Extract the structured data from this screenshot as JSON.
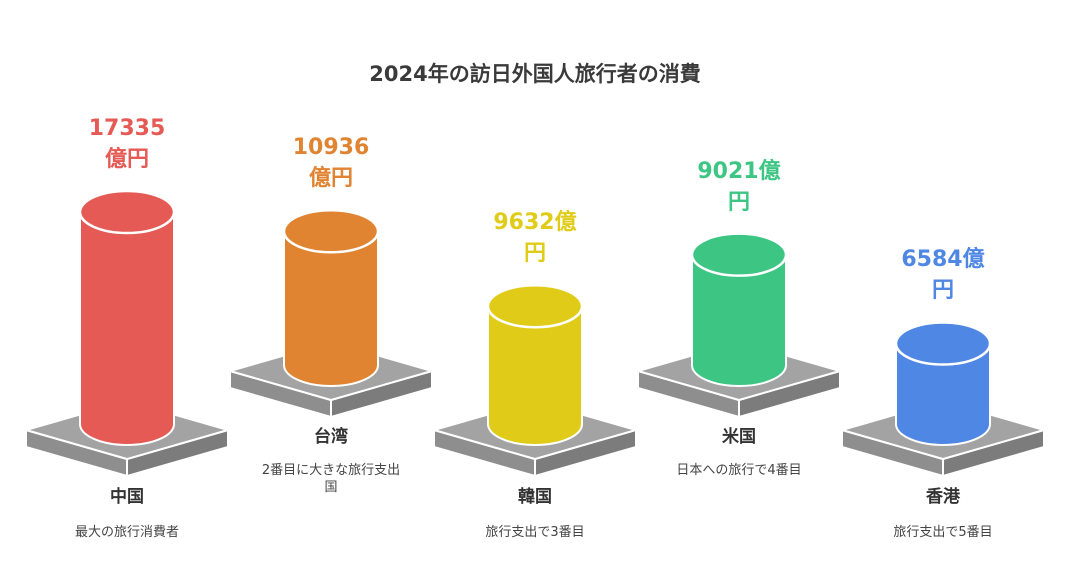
{
  "chart_data": {
    "type": "bar",
    "title": "2024年の訪日外国人旅行者の消費",
    "unit": "億円",
    "categories": [
      "中国",
      "台湾",
      "韓国",
      "米国",
      "香港"
    ],
    "values": [
      17335,
      10936,
      9632,
      9021,
      6584
    ],
    "value_labels": [
      "17335\n億円",
      "10936\n億円",
      "9632億\n円",
      "9021億\n円",
      "6584億\n円"
    ],
    "descriptions": [
      "最大の旅行消費者",
      "2番目に大きな旅行支出\n国",
      "旅行支出で3番目",
      "日本への旅行で4番目",
      "旅行支出で5番目"
    ],
    "colors": [
      "#e55a55",
      "#e08432",
      "#e0cc18",
      "#3dc683",
      "#4f87e4"
    ],
    "base_color": "#a3a3a3"
  }
}
